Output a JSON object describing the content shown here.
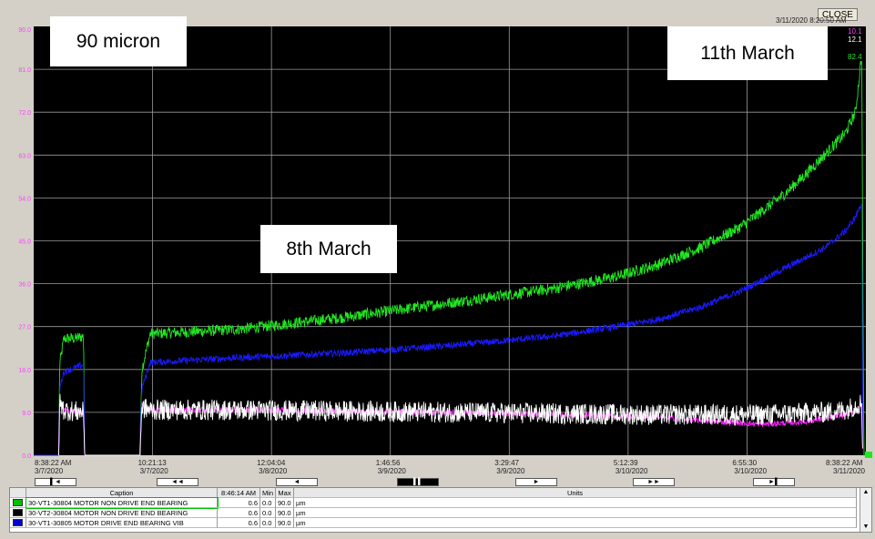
{
  "window": {
    "close_label": "CLOSE",
    "timestamp": "3/11/2020 8:20:50 AM"
  },
  "annotations": {
    "a1": "90 micron",
    "a2": "8th March",
    "a3": "11th March"
  },
  "right_values": {
    "v1": "10.1",
    "v2": "12.1",
    "v3": "82.4"
  },
  "x_axis_labels": [
    {
      "time": "8:38:22 AM",
      "date": "3/7/2020"
    },
    {
      "time": "10:21:13",
      "date": "3/7/2020"
    },
    {
      "time": "12:04:04",
      "date": "3/8/2020"
    },
    {
      "time": "1:46:56",
      "date": "3/9/2020"
    },
    {
      "time": "3:29:47",
      "date": "3/9/2020"
    },
    {
      "time": "5:12:39",
      "date": "3/10/2020"
    },
    {
      "time": "6:55:30",
      "date": "3/10/2020"
    },
    {
      "time": "8:38:22 AM",
      "date": "3/11/2020"
    }
  ],
  "nav": {
    "b1": "▌◄",
    "b2": "◄◄",
    "b3": "◄",
    "b4": "▌▌",
    "b5": "►",
    "b6": "►►",
    "b7": "►▌"
  },
  "grid": {
    "h_caption": "Caption",
    "h_time": "8:46:14 AM",
    "h_min": "Min",
    "h_max": "Max",
    "h_units": "Units",
    "rows": [
      {
        "caption": "30-VT1-30804 MOTOR NON DRIVE END BEARING",
        "value": "0.6",
        "min": "0.0",
        "max": "90.0",
        "unit": "µm",
        "color": "#00c000"
      },
      {
        "caption": "30-VT2-30804 MOTOR NON DRIVE END BEARING",
        "value": "0.6",
        "min": "0.0",
        "max": "90.0",
        "unit": "µm",
        "color": "#000000"
      },
      {
        "caption": "30-VT1-30805 MOTOR DRIVE END BEARING VIB",
        "value": "0.6",
        "min": "0.0",
        "max": "90.0",
        "unit": "µm",
        "color": "#0000cc"
      }
    ]
  },
  "chart_data": {
    "type": "line",
    "ylim": [
      0,
      90
    ],
    "y_ticks": [
      "0.0",
      "9.0",
      "18.0",
      "27.0",
      "36.0",
      "45.0",
      "54.0",
      "63.0",
      "72.0",
      "81.0",
      "90.0"
    ],
    "x_range_days": [
      0,
      4
    ],
    "grid": true,
    "background": "#000000",
    "series": [
      {
        "color": "#22e622",
        "x": [
          0.0,
          0.12,
          0.125,
          0.145,
          0.2,
          0.24,
          0.245,
          0.5,
          0.51,
          0.52,
          0.56,
          0.8,
          1.0,
          1.2,
          1.5,
          2.0,
          2.5,
          2.8,
          3.0,
          3.2,
          3.4,
          3.6,
          3.7,
          3.8,
          3.9,
          3.95,
          3.97,
          3.98,
          3.985,
          3.99,
          4.0
        ],
        "y": [
          0.0,
          0.0,
          19.0,
          24.5,
          24.5,
          25.0,
          0.0,
          0.0,
          0.0,
          18.0,
          25.5,
          26.0,
          26.5,
          27.5,
          29.0,
          32.0,
          35.0,
          37.5,
          40.0,
          43.5,
          48.0,
          54.5,
          58.5,
          63.0,
          67.5,
          72.0,
          80.0,
          85.0,
          40.0,
          0.0,
          0.0
        ],
        "noise": 1.2
      },
      {
        "color": "#1a1aff",
        "x": [
          0.0,
          0.12,
          0.125,
          0.145,
          0.24,
          0.245,
          0.51,
          0.52,
          0.56,
          1.0,
          1.5,
          2.0,
          2.5,
          2.8,
          3.0,
          3.2,
          3.4,
          3.6,
          3.8,
          3.9,
          3.95,
          3.98,
          3.985
        ],
        "y": [
          0.0,
          0.0,
          14.0,
          17.5,
          19.0,
          0.0,
          0.0,
          14.0,
          19.5,
          20.5,
          21.5,
          23.0,
          25.0,
          27.0,
          28.5,
          31.0,
          34.5,
          39.0,
          43.5,
          47.0,
          50.0,
          53.0,
          0.0
        ],
        "noise": 0.7
      },
      {
        "color": "#ff20ff",
        "x": [
          0.12,
          0.125,
          0.145,
          0.24,
          0.245,
          0.51,
          0.52,
          0.56,
          1.0,
          2.0,
          3.0,
          3.3,
          3.5,
          3.7,
          3.9,
          3.98,
          3.985
        ],
        "y": [
          0.0,
          11.0,
          9.5,
          9.0,
          0.0,
          0.0,
          10.5,
          9.5,
          9.5,
          9.0,
          8.0,
          7.0,
          6.5,
          7.0,
          8.5,
          10.0,
          0.0
        ],
        "noise": 0.6
      },
      {
        "color": "#ffffff",
        "x": [
          0.12,
          0.125,
          0.145,
          0.24,
          0.245,
          0.51,
          0.52,
          0.56,
          1.0,
          2.0,
          3.0,
          3.5,
          3.8,
          3.9,
          3.98,
          3.985
        ],
        "y": [
          0.0,
          11.0,
          9.5,
          9.0,
          0.0,
          0.0,
          10.0,
          9.5,
          9.5,
          9.0,
          8.5,
          8.5,
          9.0,
          9.5,
          11.0,
          0.0
        ],
        "noise": 2.2
      }
    ]
  }
}
